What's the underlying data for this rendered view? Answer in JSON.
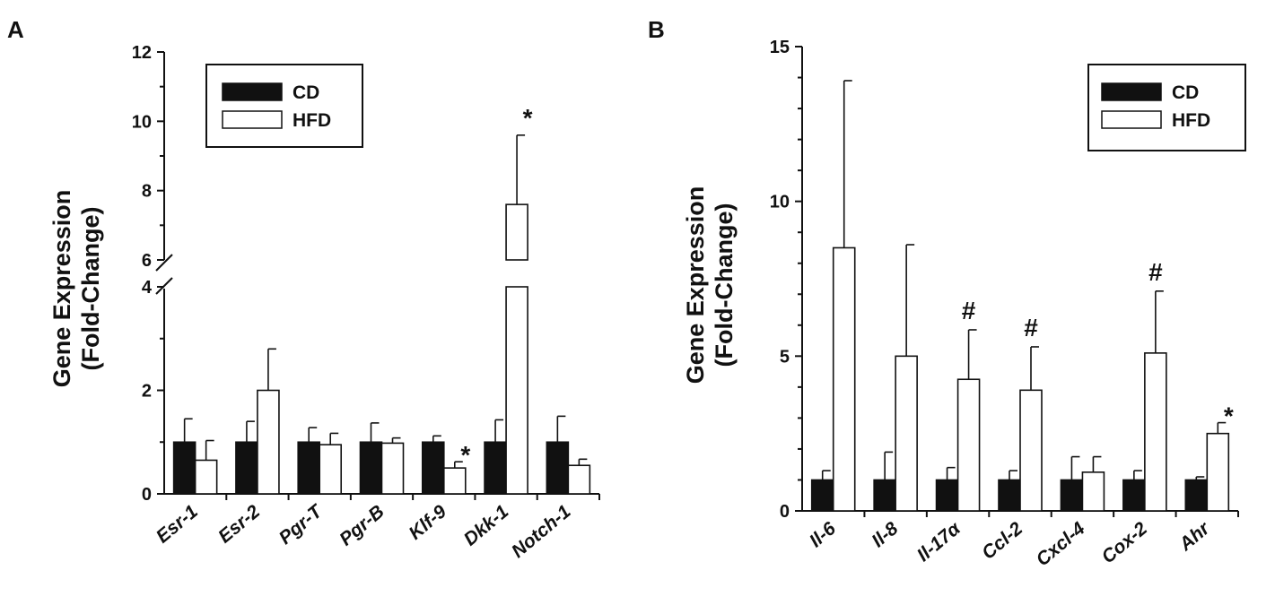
{
  "chart_data": [
    {
      "type": "bar",
      "panel_label": "A",
      "ylabel_lines": [
        "Gene Expression",
        "(Fold-Change)"
      ],
      "categories": [
        "Esr-1",
        "Esr-2",
        "Pgr-T",
        "Pgr-B",
        "Klf-9",
        "Dkk-1",
        "Notch-1"
      ],
      "axis_break": {
        "from": 4,
        "to": 6
      },
      "lower_ticks": [
        "0",
        "2",
        "4"
      ],
      "upper_ticks": [
        "6",
        "8",
        "10",
        "12"
      ],
      "ylim": [
        0,
        12
      ],
      "legend_placement": "top-left",
      "series": [
        {
          "name": "CD",
          "color": "#111111",
          "values": [
            1.0,
            1.0,
            1.0,
            1.0,
            1.0,
            1.0,
            1.0
          ],
          "errors": [
            0.45,
            0.4,
            0.28,
            0.37,
            0.12,
            0.43,
            0.5
          ]
        },
        {
          "name": "HFD",
          "color": "#ffffff",
          "values": [
            0.65,
            2.0,
            0.95,
            0.98,
            0.5,
            7.6,
            0.55
          ],
          "errors": [
            0.38,
            0.8,
            0.22,
            0.1,
            0.12,
            2.0,
            0.12
          ]
        }
      ],
      "annotations": [
        {
          "category": "Klf-9",
          "series": "HFD",
          "text": "*"
        },
        {
          "category": "Dkk-1",
          "series": "HFD",
          "text": "*"
        }
      ]
    },
    {
      "type": "bar",
      "panel_label": "B",
      "ylabel_lines": [
        "Gene Expression",
        "(Fold-Change)"
      ],
      "categories": [
        "Il-6",
        "Il-8",
        "Il-17α",
        "Ccl-2",
        "Cxcl-4",
        "Cox-2",
        "Ahr"
      ],
      "yticks": [
        "0",
        "5",
        "10",
        "15"
      ],
      "ylim": [
        0,
        15
      ],
      "legend_placement": "top-right",
      "series": [
        {
          "name": "CD",
          "color": "#111111",
          "values": [
            1.0,
            1.0,
            1.0,
            1.0,
            1.0,
            1.0,
            1.0
          ],
          "errors": [
            0.3,
            0.9,
            0.4,
            0.3,
            0.75,
            0.3,
            0.1
          ]
        },
        {
          "name": "HFD",
          "color": "#ffffff",
          "values": [
            8.5,
            5.0,
            4.25,
            3.9,
            1.25,
            5.1,
            2.5
          ],
          "errors": [
            5.4,
            3.6,
            1.6,
            1.4,
            0.5,
            2.0,
            0.35
          ]
        }
      ],
      "annotations": [
        {
          "category": "Il-17α",
          "series": "HFD",
          "text": "#"
        },
        {
          "category": "Ccl-2",
          "series": "HFD",
          "text": "#"
        },
        {
          "category": "Cox-2",
          "series": "HFD",
          "text": "#"
        },
        {
          "category": "Ahr",
          "series": "HFD",
          "text": "*"
        }
      ]
    }
  ]
}
